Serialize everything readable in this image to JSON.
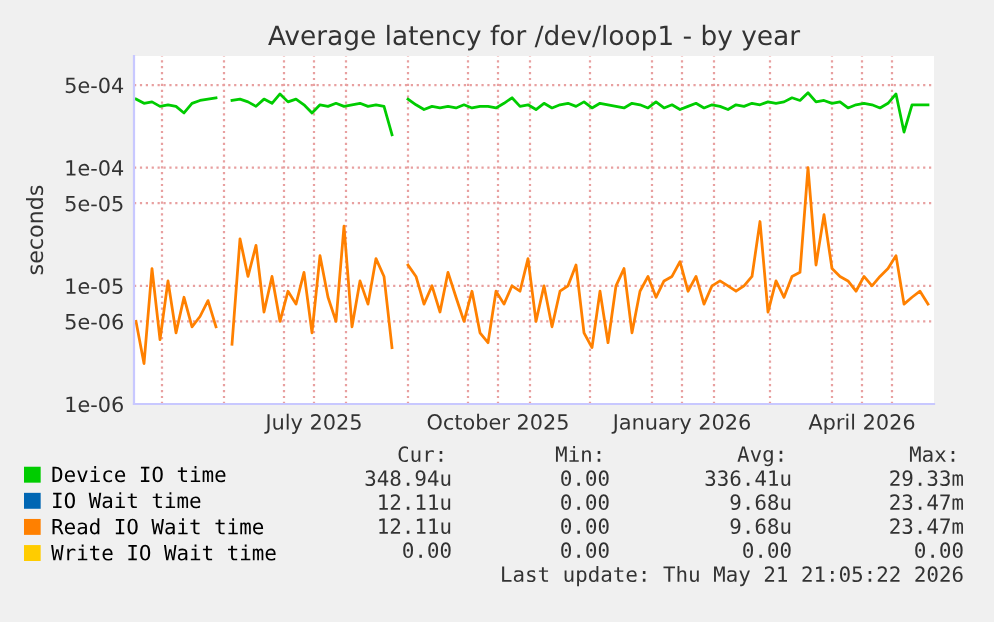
{
  "chart_data": {
    "type": "line",
    "title": "Average latency for /dev/loop1 - by year",
    "ylabel": "seconds",
    "x": [
      "2025-04-18",
      "2025-04-22",
      "2025-04-26",
      "2025-04-30",
      "2025-05-04",
      "2025-05-08",
      "2025-05-12",
      "2025-05-16",
      "2025-05-20",
      "2025-05-24",
      "2025-05-28",
      "2025-06-01",
      "2025-06-05",
      "2025-06-09",
      "2025-06-13",
      "2025-06-17",
      "2025-06-21",
      "2025-06-25",
      "2025-06-29",
      "2025-07-03",
      "2025-07-07",
      "2025-07-11",
      "2025-07-15",
      "2025-07-19",
      "2025-07-23",
      "2025-07-27",
      "2025-07-31",
      "2025-08-04",
      "2025-08-08",
      "2025-08-12",
      "2025-08-16",
      "2025-08-20",
      "2025-08-24",
      "2025-08-28",
      "2025-09-01",
      "2025-09-05",
      "2025-09-09",
      "2025-09-13",
      "2025-09-17",
      "2025-09-21",
      "2025-09-25",
      "2025-09-29",
      "2025-10-03",
      "2025-10-07",
      "2025-10-11",
      "2025-10-15",
      "2025-10-19",
      "2025-10-23",
      "2025-10-27",
      "2025-10-31",
      "2025-11-04",
      "2025-11-08",
      "2025-11-12",
      "2025-11-16",
      "2025-11-20",
      "2025-11-24",
      "2025-11-28",
      "2025-12-02",
      "2025-12-06",
      "2025-12-10",
      "2025-12-14",
      "2025-12-18",
      "2025-12-22",
      "2025-12-26",
      "2025-12-30",
      "2026-01-03",
      "2026-01-07",
      "2026-01-11",
      "2026-01-15",
      "2026-01-19",
      "2026-01-23",
      "2026-01-27",
      "2026-01-31",
      "2026-02-04",
      "2026-02-08",
      "2026-02-12",
      "2026-02-16",
      "2026-02-20",
      "2026-02-24",
      "2026-02-28",
      "2026-03-04",
      "2026-03-08",
      "2026-03-12",
      "2026-03-16",
      "2026-03-20",
      "2026-03-24",
      "2026-03-28",
      "2026-04-01",
      "2026-04-05",
      "2026-04-09",
      "2026-04-13",
      "2026-04-17",
      "2026-04-21",
      "2026-04-25",
      "2026-04-29",
      "2026-05-03",
      "2026-05-07",
      "2026-05-11",
      "2026-05-15",
      "2026-05-19"
    ],
    "series": [
      {
        "name": "Device IO time",
        "color": "#00cc00",
        "values": [
          0.00038,
          0.00035,
          0.00036,
          0.00033,
          0.00034,
          0.00033,
          0.00029,
          0.00035,
          0.00037,
          0.00038,
          0.00039,
          null,
          0.00037,
          0.00038,
          0.00036,
          0.00033,
          0.00038,
          0.00035,
          0.00042,
          0.00036,
          0.00038,
          0.00034,
          0.00029,
          0.00034,
          0.00033,
          0.00035,
          0.00033,
          0.00034,
          0.00035,
          0.00033,
          0.00034,
          0.00033,
          0.00019,
          null,
          0.00038,
          0.00034,
          0.00031,
          0.00033,
          0.00032,
          0.00033,
          0.00032,
          0.00034,
          0.00032,
          0.00033,
          0.00033,
          0.00032,
          0.00035,
          0.00039,
          0.00033,
          0.00034,
          0.00031,
          0.00035,
          0.00032,
          0.00034,
          0.00035,
          0.00033,
          0.00036,
          0.00032,
          0.00035,
          0.00034,
          0.00033,
          0.00032,
          0.00035,
          0.00034,
          0.00032,
          0.00036,
          0.00032,
          0.00034,
          0.00031,
          0.00033,
          0.00035,
          0.00032,
          0.00034,
          0.00033,
          0.00031,
          0.00034,
          0.00033,
          0.00035,
          0.00034,
          0.00036,
          0.00035,
          0.00036,
          0.00039,
          0.00037,
          0.00043,
          0.00036,
          0.00037,
          0.00035,
          0.00036,
          0.00032,
          0.00034,
          0.00035,
          0.00034,
          0.00032,
          0.00035,
          0.00042,
          0.0002,
          0.00034,
          0.00034,
          0.00034
        ]
      },
      {
        "name": "IO Wait time",
        "color": "#0066b3",
        "values": [
          null,
          null,
          null,
          null,
          null,
          null,
          null,
          null,
          null,
          null,
          null,
          null,
          null,
          null,
          null,
          null,
          null,
          null,
          null,
          null,
          null,
          null,
          null,
          null,
          null,
          null,
          null,
          null,
          null,
          null,
          null,
          null,
          null,
          null,
          null,
          null,
          null,
          null,
          null,
          null,
          null,
          null,
          null,
          null,
          null,
          null,
          null,
          null,
          null,
          null,
          null,
          null,
          null,
          null,
          null,
          null,
          null,
          null,
          null,
          null,
          null,
          null,
          null,
          null,
          null,
          null,
          null,
          null,
          null,
          null,
          null,
          null,
          null,
          null,
          null,
          null,
          null,
          null,
          null,
          null,
          null,
          null,
          null,
          null,
          null,
          null,
          null,
          null,
          null,
          null,
          null,
          null,
          null,
          null,
          null,
          null,
          null,
          null,
          null,
          null
        ]
      },
      {
        "name": "Read IO Wait time",
        "color": "#ff8000",
        "values": [
          5e-06,
          2.2e-06,
          1.4e-05,
          3.5e-06,
          1.1e-05,
          4e-06,
          8e-06,
          4.5e-06,
          5.5e-06,
          7.5e-06,
          4.5e-06,
          null,
          3.2e-06,
          2.5e-05,
          1.2e-05,
          2.2e-05,
          6e-06,
          1.2e-05,
          5e-06,
          9e-06,
          7e-06,
          1.3e-05,
          4e-06,
          1.8e-05,
          8e-06,
          5e-06,
          3.2e-05,
          4.5e-06,
          1.1e-05,
          7e-06,
          1.7e-05,
          1.2e-05,
          3e-06,
          null,
          1.5e-05,
          1.2e-05,
          7e-06,
          1e-05,
          6e-06,
          1.3e-05,
          8e-06,
          5e-06,
          9e-06,
          4e-06,
          3.3e-06,
          9e-06,
          7e-06,
          1e-05,
          9e-06,
          1.7e-05,
          5e-06,
          1e-05,
          4.5e-06,
          9e-06,
          1e-05,
          1.5e-05,
          4e-06,
          3e-06,
          9e-06,
          3.3e-06,
          1e-05,
          1.4e-05,
          4e-06,
          9e-06,
          1.2e-05,
          8e-06,
          1.1e-05,
          1.2e-05,
          1.6e-05,
          9e-06,
          1.2e-05,
          7e-06,
          1e-05,
          1.1e-05,
          1e-05,
          9e-06,
          1e-05,
          1.2e-05,
          3.5e-05,
          6e-06,
          1.1e-05,
          8e-06,
          1.2e-05,
          1.3e-05,
          0.0001,
          1.5e-05,
          4e-05,
          1.4e-05,
          1.2e-05,
          1.1e-05,
          9e-06,
          1.2e-05,
          1e-05,
          1.2e-05,
          1.4e-05,
          1.8e-05,
          7e-06,
          8e-06,
          9e-06,
          7e-06
        ]
      },
      {
        "name": "Write IO Wait time",
        "color": "#ffcc00",
        "values": [
          null,
          null,
          null,
          null,
          null,
          null,
          null,
          null,
          null,
          null,
          null,
          null,
          null,
          null,
          null,
          null,
          null,
          null,
          null,
          null,
          null,
          null,
          null,
          null,
          null,
          null,
          null,
          null,
          null,
          null,
          null,
          null,
          null,
          null,
          null,
          null,
          null,
          null,
          null,
          null,
          null,
          null,
          null,
          null,
          null,
          null,
          null,
          null,
          null,
          null,
          null,
          null,
          null,
          null,
          null,
          null,
          null,
          null,
          null,
          null,
          null,
          null,
          null,
          null,
          null,
          null,
          null,
          null,
          null,
          null,
          null,
          null,
          null,
          null,
          null,
          null,
          null,
          null,
          null,
          null,
          null,
          null,
          null,
          null,
          null,
          null,
          null,
          null,
          null,
          null,
          null,
          null,
          null,
          null,
          null,
          null,
          null,
          null,
          null,
          null
        ]
      }
    ],
    "log": "y",
    "ylim": [
      1e-06,
      0.00088
    ],
    "yticks": [
      {
        "value": 1e-06,
        "label": "1e-06"
      },
      {
        "value": 5e-06,
        "label": "5e-06"
      },
      {
        "value": 1e-05,
        "label": "1e-05"
      },
      {
        "value": 5e-05,
        "label": "5e-05"
      },
      {
        "value": 0.0001,
        "label": "1e-04"
      },
      {
        "value": 0.0005,
        "label": "5e-04"
      }
    ],
    "xlim": [
      "2025-04-17",
      "2026-05-22"
    ],
    "xticks": [
      {
        "value": "2025-05-01",
        "label": null
      },
      {
        "value": "2025-06-01",
        "label": null
      },
      {
        "value": "2025-07-01",
        "label": null
      },
      {
        "value": "2025-07-16",
        "label": "July 2025"
      },
      {
        "value": "2025-08-01",
        "label": null
      },
      {
        "value": "2025-09-01",
        "label": null
      },
      {
        "value": "2025-10-01",
        "label": null
      },
      {
        "value": "2025-10-16",
        "label": "October 2025"
      },
      {
        "value": "2025-11-01",
        "label": null
      },
      {
        "value": "2025-12-01",
        "label": null
      },
      {
        "value": "2026-01-01",
        "label": null
      },
      {
        "value": "2026-01-16",
        "label": "January 2026"
      },
      {
        "value": "2026-02-01",
        "label": null
      },
      {
        "value": "2026-03-01",
        "label": null
      },
      {
        "value": "2026-04-01",
        "label": null
      },
      {
        "value": "2026-04-16",
        "label": "April 2026"
      },
      {
        "value": "2026-05-01",
        "label": null
      }
    ],
    "grid": true,
    "legend": "bottom",
    "marker": "none",
    "line_style": "solid",
    "annotations": [
      "Cur:",
      "Min:",
      "Avg:",
      "Max:",
      "348.94u",
      "0.00",
      "336.41u",
      "29.33m",
      "12.11u",
      "0.00",
      "9.68u",
      "23.47m",
      "12.11u",
      "0.00",
      "9.68u",
      "23.47m",
      "0.00",
      "0.00",
      "0.00",
      "0.00",
      "Last update: Thu May 21 21:05:22 2026"
    ]
  }
}
